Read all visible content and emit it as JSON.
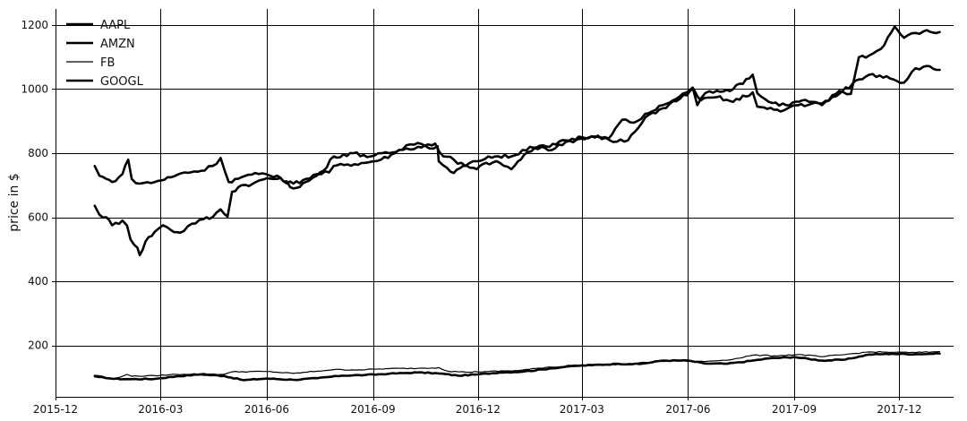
{
  "chart_data": {
    "type": "line",
    "title": "",
    "xlabel": "",
    "ylabel": "price in $",
    "xlim": [
      "2015-12-01",
      "2018-01-17"
    ],
    "ylim": [
      40,
      1250
    ],
    "grid": true,
    "legend_position": "top-left",
    "x_ticks": [
      {
        "date": "2015-12-01",
        "label": "2015-12"
      },
      {
        "date": "2016-03-01",
        "label": "2016-03"
      },
      {
        "date": "2016-06-01",
        "label": "2016-06"
      },
      {
        "date": "2016-09-01",
        "label": "2016-09"
      },
      {
        "date": "2016-12-01",
        "label": "2016-12"
      },
      {
        "date": "2017-03-01",
        "label": "2017-03"
      },
      {
        "date": "2017-06-01",
        "label": "2017-06"
      },
      {
        "date": "2017-09-01",
        "label": "2017-09"
      },
      {
        "date": "2017-12-01",
        "label": "2017-12"
      }
    ],
    "y_ticks": [
      {
        "value": 200,
        "label": "200"
      },
      {
        "value": 400,
        "label": "400"
      },
      {
        "value": 600,
        "label": "600"
      },
      {
        "value": 800,
        "label": "800"
      },
      {
        "value": 1000,
        "label": "1000"
      },
      {
        "value": 1200,
        "label": "1200"
      }
    ],
    "series": [
      {
        "name": "AAPL",
        "color": "#000000",
        "width": 2.6,
        "points": [
          [
            "2016-01-04",
            105
          ],
          [
            "2016-01-20",
            96
          ],
          [
            "2016-02-05",
            95
          ],
          [
            "2016-02-25",
            96
          ],
          [
            "2016-03-15",
            104
          ],
          [
            "2016-04-05",
            110
          ],
          [
            "2016-04-25",
            105
          ],
          [
            "2016-05-12",
            92
          ],
          [
            "2016-06-01",
            97
          ],
          [
            "2016-06-24",
            93
          ],
          [
            "2016-07-15",
            98
          ],
          [
            "2016-08-05",
            106
          ],
          [
            "2016-08-25",
            108
          ],
          [
            "2016-09-15",
            112
          ],
          [
            "2016-10-10",
            116
          ],
          [
            "2016-10-28",
            113
          ],
          [
            "2016-11-14",
            106
          ],
          [
            "2016-12-01",
            110
          ],
          [
            "2016-12-20",
            116
          ],
          [
            "2017-01-10",
            119
          ],
          [
            "2017-02-01",
            128
          ],
          [
            "2017-02-20",
            136
          ],
          [
            "2017-03-10",
            139
          ],
          [
            "2017-04-01",
            143
          ],
          [
            "2017-04-20",
            142
          ],
          [
            "2017-05-10",
            153
          ],
          [
            "2017-06-01",
            153
          ],
          [
            "2017-06-15",
            144
          ],
          [
            "2017-07-05",
            143
          ],
          [
            "2017-07-25",
            152
          ],
          [
            "2017-08-10",
            160
          ],
          [
            "2017-09-01",
            164
          ],
          [
            "2017-09-25",
            153
          ],
          [
            "2017-10-15",
            156
          ],
          [
            "2017-11-05",
            172
          ],
          [
            "2017-11-25",
            174
          ],
          [
            "2017-12-15",
            173
          ],
          [
            "2018-01-05",
            175
          ]
        ]
      },
      {
        "name": "AMZN",
        "color": "#000000",
        "width": 2.6,
        "points": [
          [
            "2016-01-04",
            636
          ],
          [
            "2016-01-08",
            608
          ],
          [
            "2016-01-14",
            600
          ],
          [
            "2016-01-19",
            575
          ],
          [
            "2016-01-28",
            590
          ],
          [
            "2016-02-01",
            574
          ],
          [
            "2016-02-04",
            531
          ],
          [
            "2016-02-10",
            505
          ],
          [
            "2016-02-12",
            482
          ],
          [
            "2016-02-17",
            525
          ],
          [
            "2016-02-25",
            555
          ],
          [
            "2016-03-03",
            575
          ],
          [
            "2016-03-10",
            560
          ],
          [
            "2016-03-18",
            552
          ],
          [
            "2016-03-28",
            580
          ],
          [
            "2016-04-07",
            594
          ],
          [
            "2016-04-15",
            600
          ],
          [
            "2016-04-22",
            625
          ],
          [
            "2016-04-28",
            602
          ],
          [
            "2016-05-02",
            680
          ],
          [
            "2016-05-10",
            700
          ],
          [
            "2016-05-20",
            705
          ],
          [
            "2016-06-01",
            722
          ],
          [
            "2016-06-10",
            720
          ],
          [
            "2016-06-24",
            705
          ],
          [
            "2016-07-05",
            720
          ],
          [
            "2016-07-15",
            735
          ],
          [
            "2016-07-25",
            740
          ],
          [
            "2016-07-29",
            760
          ],
          [
            "2016-08-10",
            765
          ],
          [
            "2016-08-25",
            770
          ],
          [
            "2016-09-08",
            780
          ],
          [
            "2016-09-20",
            800
          ],
          [
            "2016-09-30",
            825
          ],
          [
            "2016-10-10",
            832
          ],
          [
            "2016-10-20",
            815
          ],
          [
            "2016-10-27",
            822
          ],
          [
            "2016-10-28",
            775
          ],
          [
            "2016-11-04",
            755
          ],
          [
            "2016-11-10",
            738
          ],
          [
            "2016-11-18",
            760
          ],
          [
            "2016-11-30",
            750
          ],
          [
            "2016-12-08",
            770
          ],
          [
            "2016-12-20",
            770
          ],
          [
            "2016-12-30",
            750
          ],
          [
            "2017-01-10",
            795
          ],
          [
            "2017-01-25",
            820
          ],
          [
            "2017-02-03",
            810
          ],
          [
            "2017-02-15",
            835
          ],
          [
            "2017-02-28",
            845
          ],
          [
            "2017-03-10",
            852
          ],
          [
            "2017-03-24",
            845
          ],
          [
            "2017-04-05",
            905
          ],
          [
            "2017-04-15",
            895
          ],
          [
            "2017-04-28",
            925
          ],
          [
            "2017-05-10",
            950
          ],
          [
            "2017-05-22",
            970
          ],
          [
            "2017-06-05",
            1005
          ],
          [
            "2017-06-09",
            950
          ],
          [
            "2017-06-16",
            988
          ],
          [
            "2017-06-26",
            995
          ],
          [
            "2017-07-10",
            1000
          ],
          [
            "2017-07-27",
            1045
          ],
          [
            "2017-07-31",
            987
          ],
          [
            "2017-08-10",
            960
          ],
          [
            "2017-08-25",
            950
          ],
          [
            "2017-09-08",
            965
          ],
          [
            "2017-09-25",
            950
          ],
          [
            "2017-10-10",
            995
          ],
          [
            "2017-10-20",
            985
          ],
          [
            "2017-10-27",
            1100
          ],
          [
            "2017-11-05",
            1105
          ],
          [
            "2017-11-15",
            1125
          ],
          [
            "2017-11-27",
            1195
          ],
          [
            "2017-12-05",
            1160
          ],
          [
            "2017-12-15",
            1175
          ],
          [
            "2017-12-22",
            1180
          ],
          [
            "2018-01-05",
            1178
          ]
        ]
      },
      {
        "name": "FB",
        "color": "#000000",
        "width": 1.2,
        "points": [
          [
            "2016-01-04",
            102
          ],
          [
            "2016-01-20",
            95
          ],
          [
            "2016-02-01",
            110
          ],
          [
            "2016-02-05",
            104
          ],
          [
            "2016-02-25",
            106
          ],
          [
            "2016-03-15",
            110
          ],
          [
            "2016-04-05",
            112
          ],
          [
            "2016-04-25",
            110
          ],
          [
            "2016-05-02",
            118
          ],
          [
            "2016-06-01",
            119
          ],
          [
            "2016-06-24",
            113
          ],
          [
            "2016-07-15",
            120
          ],
          [
            "2016-07-29",
            125
          ],
          [
            "2016-08-20",
            124
          ],
          [
            "2016-09-15",
            128
          ],
          [
            "2016-10-10",
            129
          ],
          [
            "2016-10-28",
            131
          ],
          [
            "2016-11-05",
            120
          ],
          [
            "2016-11-20",
            117
          ],
          [
            "2016-12-10",
            119
          ],
          [
            "2017-01-05",
            122
          ],
          [
            "2017-02-01",
            133
          ],
          [
            "2017-02-20",
            134
          ],
          [
            "2017-03-15",
            139
          ],
          [
            "2017-04-05",
            141
          ],
          [
            "2017-05-05",
            150
          ],
          [
            "2017-05-25",
            152
          ],
          [
            "2017-06-15",
            150
          ],
          [
            "2017-07-10",
            157
          ],
          [
            "2017-07-27",
            170
          ],
          [
            "2017-08-15",
            168
          ],
          [
            "2017-09-05",
            172
          ],
          [
            "2017-09-25",
            165
          ],
          [
            "2017-10-15",
            172
          ],
          [
            "2017-11-05",
            180
          ],
          [
            "2017-11-25",
            179
          ],
          [
            "2017-12-15",
            178
          ],
          [
            "2018-01-05",
            181
          ]
        ]
      },
      {
        "name": "GOOGL",
        "color": "#000000",
        "width": 2.6,
        "points": [
          [
            "2016-01-04",
            760
          ],
          [
            "2016-01-08",
            730
          ],
          [
            "2016-01-14",
            720
          ],
          [
            "2016-01-19",
            710
          ],
          [
            "2016-01-28",
            735
          ],
          [
            "2016-02-02",
            780
          ],
          [
            "2016-02-05",
            720
          ],
          [
            "2016-02-12",
            705
          ],
          [
            "2016-02-25",
            710
          ],
          [
            "2016-03-10",
            725
          ],
          [
            "2016-03-22",
            740
          ],
          [
            "2016-04-05",
            745
          ],
          [
            "2016-04-15",
            760
          ],
          [
            "2016-04-22",
            785
          ],
          [
            "2016-04-29",
            710
          ],
          [
            "2016-05-10",
            725
          ],
          [
            "2016-05-25",
            735
          ],
          [
            "2016-06-10",
            730
          ],
          [
            "2016-06-24",
            690
          ],
          [
            "2016-07-08",
            715
          ],
          [
            "2016-07-20",
            745
          ],
          [
            "2016-07-29",
            790
          ],
          [
            "2016-08-15",
            800
          ],
          [
            "2016-08-30",
            790
          ],
          [
            "2016-09-15",
            800
          ],
          [
            "2016-09-30",
            815
          ],
          [
            "2016-10-10",
            820
          ],
          [
            "2016-10-25",
            830
          ],
          [
            "2016-11-01",
            790
          ],
          [
            "2016-11-10",
            780
          ],
          [
            "2016-11-20",
            760
          ],
          [
            "2016-11-30",
            775
          ],
          [
            "2016-12-10",
            790
          ],
          [
            "2016-12-30",
            790
          ],
          [
            "2017-01-15",
            820
          ],
          [
            "2017-02-01",
            820
          ],
          [
            "2017-02-15",
            840
          ],
          [
            "2017-03-01",
            850
          ],
          [
            "2017-03-15",
            855
          ],
          [
            "2017-03-28",
            835
          ],
          [
            "2017-04-10",
            840
          ],
          [
            "2017-04-28",
            920
          ],
          [
            "2017-05-10",
            940
          ],
          [
            "2017-05-25",
            970
          ],
          [
            "2017-06-06",
            1000
          ],
          [
            "2017-06-12",
            965
          ],
          [
            "2017-06-26",
            975
          ],
          [
            "2017-07-10",
            960
          ],
          [
            "2017-07-27",
            990
          ],
          [
            "2017-07-31",
            945
          ],
          [
            "2017-08-20",
            930
          ],
          [
            "2017-09-01",
            950
          ],
          [
            "2017-09-25",
            955
          ],
          [
            "2017-10-10",
            985
          ],
          [
            "2017-10-27",
            1030
          ],
          [
            "2017-11-05",
            1045
          ],
          [
            "2017-11-20",
            1040
          ],
          [
            "2017-12-05",
            1020
          ],
          [
            "2017-12-15",
            1065
          ],
          [
            "2017-12-22",
            1070
          ],
          [
            "2018-01-05",
            1060
          ]
        ]
      }
    ]
  }
}
